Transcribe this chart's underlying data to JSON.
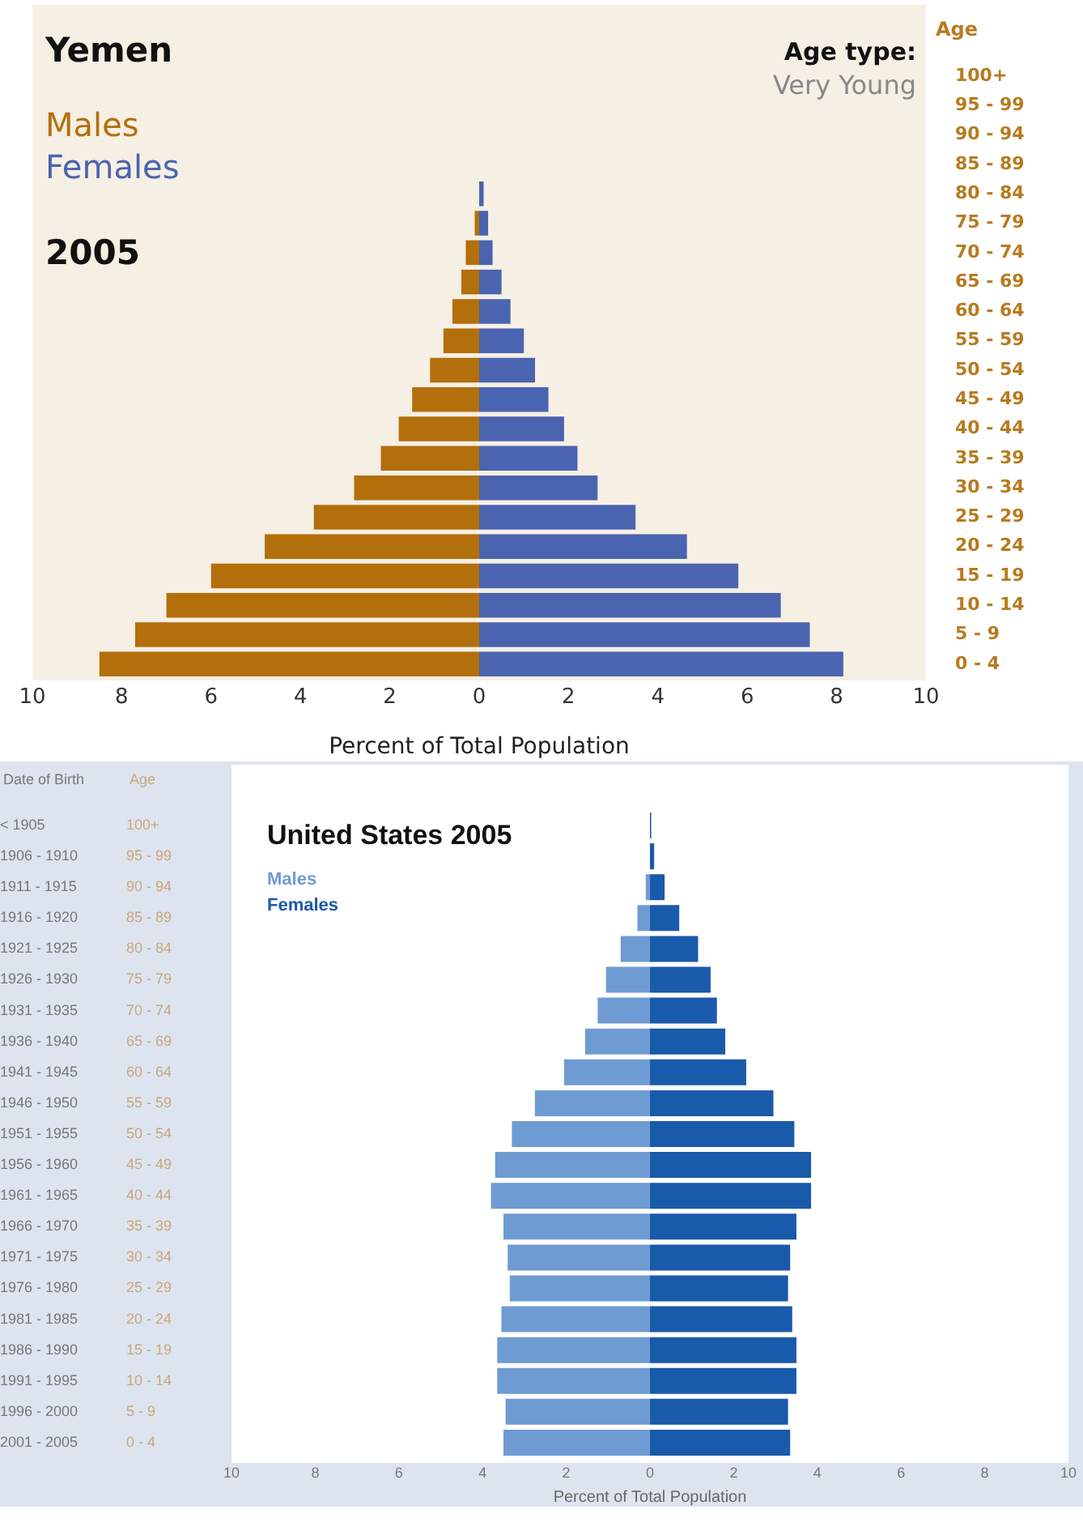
{
  "chart_data": [
    {
      "type": "bar",
      "orientation": "horizontal",
      "stacked": true,
      "title": "Yemen",
      "subtitle": "2005",
      "xlabel": "Percent of Total Population",
      "ylabel": "Age",
      "annotations": [
        "Age type:",
        "Very Young"
      ],
      "legend": "top left",
      "categories": [
        "100+",
        "95 - 99",
        "90 - 94",
        "85 - 89",
        "80 - 84",
        "75 - 79",
        "70 - 74",
        "65 - 69",
        "60 - 64",
        "55 - 59",
        "50 - 54",
        "45 - 49",
        "40 - 44",
        "35 - 39",
        "30 - 34",
        "25 - 29",
        "20 - 24",
        "15 - 19",
        "10 - 14",
        "5 - 9",
        "0 - 4"
      ],
      "xlim": [
        -10,
        10
      ],
      "xticks": [
        {
          "value": -10,
          "label": "10"
        },
        {
          "value": -8,
          "label": "8"
        },
        {
          "value": -6,
          "label": "6"
        },
        {
          "value": -4,
          "label": "4"
        },
        {
          "value": -2,
          "label": "2"
        },
        0,
        2,
        4,
        6,
        8,
        10
      ],
      "series": [
        {
          "name": "Males",
          "color": "#b36f0c",
          "values": [
            0,
            0,
            0,
            0,
            0,
            -0.1,
            -0.3,
            -0.4,
            -0.6,
            -0.8,
            -1.1,
            -1.5,
            -1.8,
            -2.2,
            -2.8,
            -3.7,
            -4.8,
            -6.0,
            -7.0,
            -7.7,
            -8.5
          ]
        },
        {
          "name": "Females",
          "color": "#4a64b0",
          "values": [
            0,
            0,
            0,
            0,
            0.1,
            0.2,
            0.3,
            0.5,
            0.7,
            1.0,
            1.25,
            1.55,
            1.9,
            2.2,
            2.65,
            3.5,
            4.65,
            5.8,
            6.75,
            7.4,
            8.15
          ]
        }
      ]
    },
    {
      "type": "bar",
      "orientation": "horizontal",
      "stacked": true,
      "title": "United States 2005",
      "xlabel": "Percent of Total Population",
      "ylabel": "Age",
      "y2label": "Date of Birth",
      "legend": "top left",
      "categories": [
        "100+",
        "95 - 99",
        "90 - 94",
        "85 - 89",
        "80 - 84",
        "75 - 79",
        "70 - 74",
        "65 - 69",
        "60 - 64",
        "55 - 59",
        "50 - 54",
        "45 - 49",
        "40 - 44",
        "35 - 39",
        "30 - 34",
        "25 - 29",
        "20 - 24",
        "15 - 19",
        "10 - 14",
        "5 - 9",
        "0 - 4"
      ],
      "y2_categories": [
        "< 1905",
        "1906 - 1910",
        "1911 - 1915",
        "1916 - 1920",
        "1921 - 1925",
        "1926 - 1930",
        "1931 - 1935",
        "1936 - 1940",
        "1941 - 1945",
        "1946 - 1950",
        "1951 - 1955",
        "1956 - 1960",
        "1961 - 1965",
        "1966 - 1970",
        "1971 - 1975",
        "1976 - 1980",
        "1981 - 1985",
        "1986 - 1990",
        "1991 - 1995",
        "1996 - 2000",
        "2001 - 2005"
      ],
      "xlim": [
        -10,
        10
      ],
      "xticks": [
        {
          "value": -10,
          "label": "10"
        },
        {
          "value": -8,
          "label": "8"
        },
        {
          "value": -6,
          "label": "6"
        },
        {
          "value": -4,
          "label": "4"
        },
        {
          "value": -2,
          "label": "2"
        },
        0,
        2,
        4,
        6,
        8,
        10
      ],
      "series": [
        {
          "name": "Males",
          "color": "#6f9bd3",
          "values": [
            0,
            0,
            -0.1,
            -0.3,
            -0.7,
            -1.05,
            -1.25,
            -1.55,
            -2.05,
            -2.75,
            -3.3,
            -3.7,
            -3.8,
            -3.5,
            -3.4,
            -3.35,
            -3.55,
            -3.65,
            -3.65,
            -3.45,
            -3.5
          ]
        },
        {
          "name": "Females",
          "color": "#1a5aaa",
          "values": [
            0.03,
            0.1,
            0.35,
            0.7,
            1.15,
            1.45,
            1.6,
            1.8,
            2.3,
            2.95,
            3.45,
            3.85,
            3.85,
            3.5,
            3.35,
            3.3,
            3.4,
            3.5,
            3.5,
            3.3,
            3.35
          ]
        }
      ]
    }
  ]
}
